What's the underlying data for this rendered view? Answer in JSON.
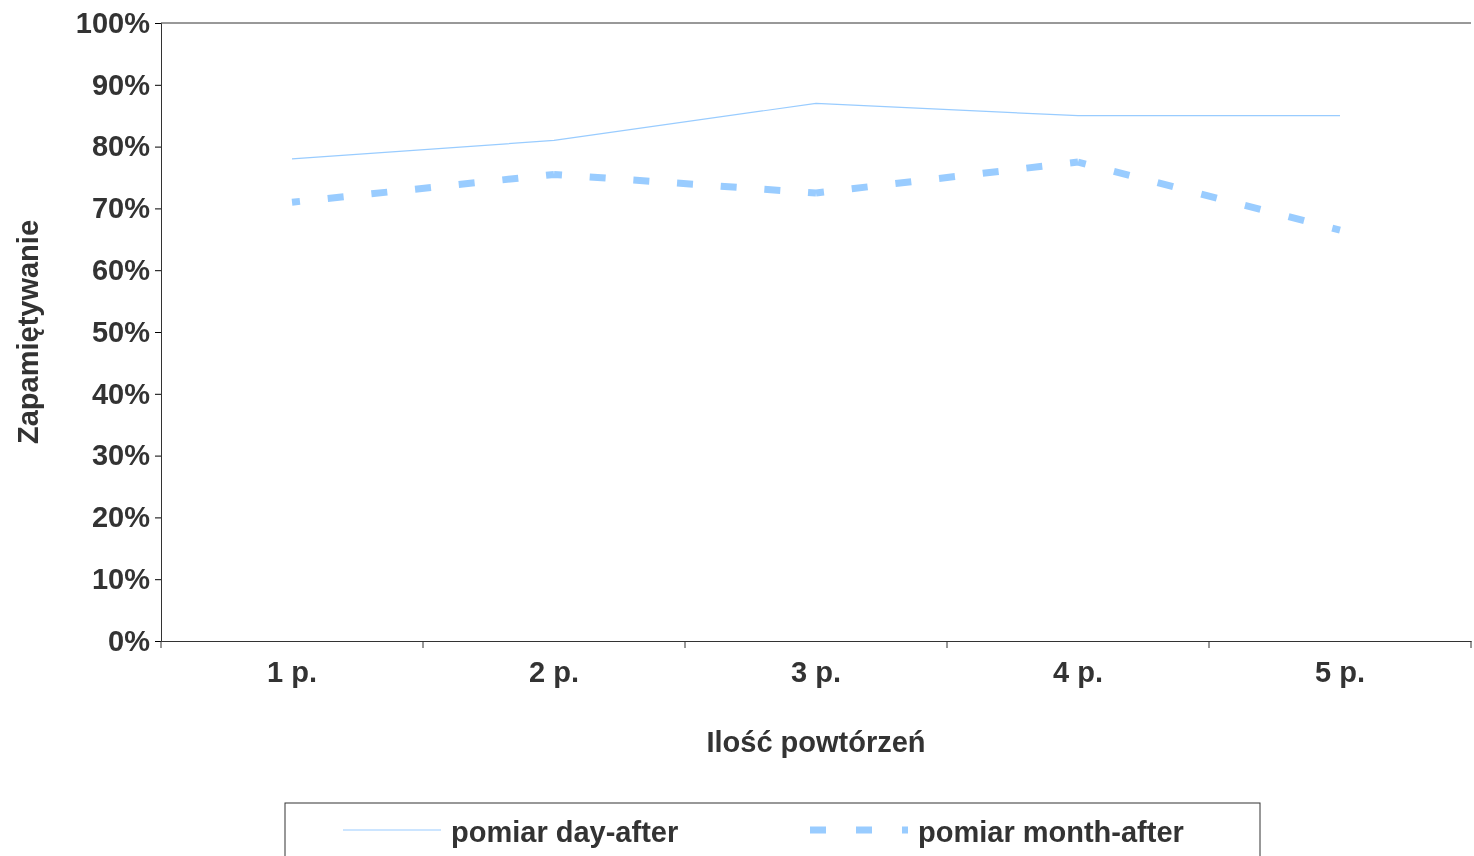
{
  "chart_data": {
    "type": "line",
    "xlabel": "Ilość powtórzeń",
    "ylabel": "Zapamiętywanie",
    "categories": [
      "1 p.",
      "2 p.",
      "3 p.",
      "4 p.",
      "5 p."
    ],
    "series": [
      {
        "name": "pomiar day-after",
        "color": "#99ccff",
        "line_style": "solid",
        "values": [
          78,
          81,
          87,
          85,
          85
        ]
      },
      {
        "name": "pomiar month-after",
        "color": "#99ccff",
        "line_style": "dashed",
        "values": [
          71,
          75.5,
          72.5,
          77.5,
          66.5
        ]
      }
    ],
    "ylim": [
      0,
      100
    ],
    "yticks": [
      {
        "value": 0,
        "label": "0%"
      },
      {
        "value": 10,
        "label": "10%"
      },
      {
        "value": 20,
        "label": "20%"
      },
      {
        "value": 30,
        "label": "30%"
      },
      {
        "value": 40,
        "label": "40%"
      },
      {
        "value": 50,
        "label": "50%"
      },
      {
        "value": 60,
        "label": "60%"
      },
      {
        "value": 70,
        "label": "70%"
      },
      {
        "value": 80,
        "label": "80%"
      },
      {
        "value": 90,
        "label": "90%"
      },
      {
        "value": 100,
        "label": "100%"
      }
    ],
    "grid": false,
    "legend": "bottom",
    "marker": "none"
  }
}
